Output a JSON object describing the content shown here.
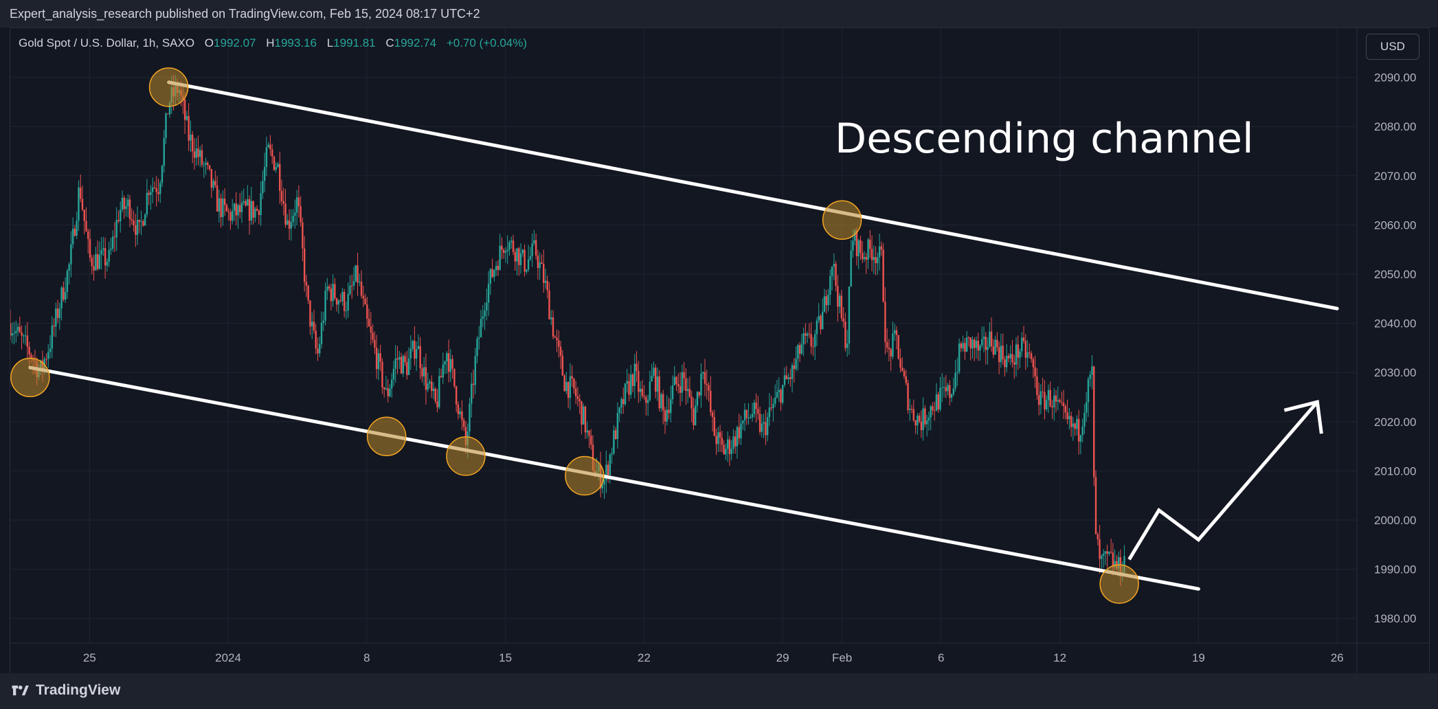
{
  "header": {
    "published": "Expert_analysis_research published on TradingView.com, Feb 15, 2024 08:17 UTC+2"
  },
  "legend": {
    "symbol": "Gold Spot / U.S. Dollar, 1h, SAXO",
    "open_label": "O",
    "open": "1992.07",
    "high_label": "H",
    "high": "1993.16",
    "low_label": "L",
    "low": "1991.81",
    "close_label": "C",
    "close": "1992.74",
    "change": "+0.70 (+0.04%)"
  },
  "currency_button": "USD",
  "annotation": "Descending channel",
  "footer": {
    "brand": "TradingView"
  },
  "colors": {
    "background": "#131722",
    "up": "#26a69a",
    "down": "#ef5350",
    "channel": "#ffffff",
    "marker_fill": "#b8862a",
    "marker_stroke": "#f5a623"
  },
  "chart_data": {
    "type": "candlestick",
    "symbol": "Gold Spot / U.S. Dollar",
    "interval": "1h",
    "y_range": [
      1975,
      2100
    ],
    "y_ticks": [
      2090,
      2080,
      2070,
      2060,
      2050,
      2040,
      2030,
      2020,
      2010,
      2000,
      1990,
      1980
    ],
    "y_tick_labels": [
      "2090.00",
      "2080.00",
      "2070.00",
      "2060.00",
      "2050.00",
      "2040.00",
      "2030.00",
      "2020.00",
      "2010.00",
      "2000.00",
      "1990.00",
      "1980.00"
    ],
    "x_range": [
      "2023-12-21",
      "2024-02-27"
    ],
    "x_ticks": [
      {
        "date": "2023-12-25",
        "label": "25"
      },
      {
        "date": "2024-01-01",
        "label": "2024"
      },
      {
        "date": "2024-01-08",
        "label": "8"
      },
      {
        "date": "2024-01-15",
        "label": "15"
      },
      {
        "date": "2024-01-22",
        "label": "22"
      },
      {
        "date": "2024-01-29",
        "label": "29"
      },
      {
        "date": "2024-02-01",
        "label": "Feb"
      },
      {
        "date": "2024-02-06",
        "label": "6"
      },
      {
        "date": "2024-02-12",
        "label": "12"
      },
      {
        "date": "2024-02-19",
        "label": "19"
      },
      {
        "date": "2024-02-26",
        "label": "26"
      }
    ],
    "price_path": [
      {
        "date": "2023-12-21",
        "price": 2040
      },
      {
        "date": "2023-12-22",
        "price": 2034
      },
      {
        "date": "2023-12-22T12:00",
        "price": 2030
      },
      {
        "date": "2023-12-23",
        "price": 2036
      },
      {
        "date": "2023-12-24",
        "price": 2052
      },
      {
        "date": "2023-12-24T12:00",
        "price": 2068
      },
      {
        "date": "2023-12-25",
        "price": 2053
      },
      {
        "date": "2023-12-26",
        "price": 2053
      },
      {
        "date": "2023-12-26T12:00",
        "price": 2063
      },
      {
        "date": "2023-12-27",
        "price": 2064
      },
      {
        "date": "2023-12-27T12:00",
        "price": 2058
      },
      {
        "date": "2023-12-28",
        "price": 2068
      },
      {
        "date": "2023-12-28T12:00",
        "price": 2068
      },
      {
        "date": "2023-12-29",
        "price": 2085
      },
      {
        "date": "2023-12-29T12:00",
        "price": 2088
      },
      {
        "date": "2023-12-30",
        "price": 2078
      },
      {
        "date": "2023-12-31",
        "price": 2070
      },
      {
        "date": "2023-12-31T12:00",
        "price": 2064
      },
      {
        "date": "2024-01-01",
        "price": 2062
      },
      {
        "date": "2024-01-02",
        "price": 2063
      },
      {
        "date": "2024-01-02T12:00",
        "price": 2063
      },
      {
        "date": "2024-01-03",
        "price": 2075
      },
      {
        "date": "2024-01-03T12:00",
        "price": 2072
      },
      {
        "date": "2024-01-04",
        "price": 2060
      },
      {
        "date": "2024-01-04T12:00",
        "price": 2065
      },
      {
        "date": "2024-01-05",
        "price": 2044
      },
      {
        "date": "2024-01-05T12:00",
        "price": 2033
      },
      {
        "date": "2024-01-06",
        "price": 2047
      },
      {
        "date": "2024-01-07",
        "price": 2044
      },
      {
        "date": "2024-01-07T12:00",
        "price": 2050
      },
      {
        "date": "2024-01-08",
        "price": 2040
      },
      {
        "date": "2024-01-08T12:00",
        "price": 2033
      },
      {
        "date": "2024-01-09",
        "price": 2025
      },
      {
        "date": "2024-01-09T12:00",
        "price": 2033
      },
      {
        "date": "2024-01-10",
        "price": 2031
      },
      {
        "date": "2024-01-10T12:00",
        "price": 2036
      },
      {
        "date": "2024-01-11",
        "price": 2028
      },
      {
        "date": "2024-01-11T12:00",
        "price": 2023
      },
      {
        "date": "2024-01-12",
        "price": 2035
      },
      {
        "date": "2024-01-12T12:00",
        "price": 2026
      },
      {
        "date": "2024-01-13",
        "price": 2015
      },
      {
        "date": "2024-01-13T12:00",
        "price": 2033
      },
      {
        "date": "2024-01-14",
        "price": 2046
      },
      {
        "date": "2024-01-14T12:00",
        "price": 2052
      },
      {
        "date": "2024-01-15",
        "price": 2057
      },
      {
        "date": "2024-01-15T12:00",
        "price": 2055
      },
      {
        "date": "2024-01-16",
        "price": 2052
      },
      {
        "date": "2024-01-16T12:00",
        "price": 2055
      },
      {
        "date": "2024-01-17",
        "price": 2048
      },
      {
        "date": "2024-01-17T12:00",
        "price": 2037
      },
      {
        "date": "2024-01-18",
        "price": 2028
      },
      {
        "date": "2024-01-18T12:00",
        "price": 2026
      },
      {
        "date": "2024-01-19",
        "price": 2020
      },
      {
        "date": "2024-01-19T12:00",
        "price": 2010
      },
      {
        "date": "2024-01-20",
        "price": 2008
      },
      {
        "date": "2024-01-20T12:00",
        "price": 2017
      },
      {
        "date": "2024-01-21",
        "price": 2025
      },
      {
        "date": "2024-01-21T12:00",
        "price": 2030
      },
      {
        "date": "2024-01-22",
        "price": 2023
      },
      {
        "date": "2024-01-22T12:00",
        "price": 2030
      },
      {
        "date": "2024-01-23",
        "price": 2021
      },
      {
        "date": "2024-01-23T12:00",
        "price": 2027
      },
      {
        "date": "2024-01-24",
        "price": 2029
      },
      {
        "date": "2024-01-24T12:00",
        "price": 2021
      },
      {
        "date": "2024-01-25",
        "price": 2032
      },
      {
        "date": "2024-01-25T12:00",
        "price": 2018
      },
      {
        "date": "2024-01-26",
        "price": 2014
      },
      {
        "date": "2024-01-26T12:00",
        "price": 2016
      },
      {
        "date": "2024-01-27",
        "price": 2020
      },
      {
        "date": "2024-01-27T12:00",
        "price": 2022
      },
      {
        "date": "2024-01-28",
        "price": 2018
      },
      {
        "date": "2024-01-28T12:00",
        "price": 2023
      },
      {
        "date": "2024-01-29",
        "price": 2027
      },
      {
        "date": "2024-01-29T12:00",
        "price": 2030
      },
      {
        "date": "2024-01-30",
        "price": 2036
      },
      {
        "date": "2024-01-30T12:00",
        "price": 2036
      },
      {
        "date": "2024-01-31",
        "price": 2041
      },
      {
        "date": "2024-01-31T12:00",
        "price": 2053
      },
      {
        "date": "2024-02-01",
        "price": 2040
      },
      {
        "date": "2024-02-01T06:00",
        "price": 2036
      },
      {
        "date": "2024-02-01T12:00",
        "price": 2058
      },
      {
        "date": "2024-02-02",
        "price": 2054
      },
      {
        "date": "2024-02-02T12:00",
        "price": 2055
      },
      {
        "date": "2024-02-03",
        "price": 2053
      },
      {
        "date": "2024-02-03T06:00",
        "price": 2033
      },
      {
        "date": "2024-02-03T18:00",
        "price": 2037
      },
      {
        "date": "2024-02-04",
        "price": 2030
      },
      {
        "date": "2024-02-04T12:00",
        "price": 2022
      },
      {
        "date": "2024-02-05",
        "price": 2020
      },
      {
        "date": "2024-02-05T12:00",
        "price": 2023
      },
      {
        "date": "2024-02-06",
        "price": 2025
      },
      {
        "date": "2024-02-06T12:00",
        "price": 2026
      },
      {
        "date": "2024-02-07",
        "price": 2035
      },
      {
        "date": "2024-02-07T12:00",
        "price": 2036
      },
      {
        "date": "2024-02-08",
        "price": 2034
      },
      {
        "date": "2024-02-08T12:00",
        "price": 2037
      },
      {
        "date": "2024-02-09",
        "price": 2034
      },
      {
        "date": "2024-02-09T12:00",
        "price": 2032
      },
      {
        "date": "2024-02-10",
        "price": 2035
      },
      {
        "date": "2024-02-10T12:00",
        "price": 2033
      },
      {
        "date": "2024-02-11",
        "price": 2024
      },
      {
        "date": "2024-02-11T12:00",
        "price": 2025
      },
      {
        "date": "2024-02-12",
        "price": 2022
      },
      {
        "date": "2024-02-12T12:00",
        "price": 2019
      },
      {
        "date": "2024-02-13",
        "price": 2018
      },
      {
        "date": "2024-02-13T06:00",
        "price": 2024
      },
      {
        "date": "2024-02-13T12:00",
        "price": 2028
      },
      {
        "date": "2024-02-13T15:00",
        "price": 2030
      },
      {
        "date": "2024-02-13T18:00",
        "price": 2000
      },
      {
        "date": "2024-02-14",
        "price": 1991
      },
      {
        "date": "2024-02-14T12:00",
        "price": 1992
      },
      {
        "date": "2024-02-15",
        "price": 1990
      },
      {
        "date": "2024-02-15T08:00",
        "price": 1992.74
      }
    ],
    "channel": {
      "upper": [
        {
          "date": "2023-12-29",
          "price": 2089
        },
        {
          "date": "2024-02-26",
          "price": 2043
        }
      ],
      "lower": [
        {
          "date": "2023-12-22",
          "price": 2031
        },
        {
          "date": "2024-02-19",
          "price": 1986
        }
      ]
    },
    "touch_points": [
      {
        "date": "2023-12-22",
        "price": 2029
      },
      {
        "date": "2023-12-29",
        "price": 2088
      },
      {
        "date": "2024-01-09",
        "price": 2017
      },
      {
        "date": "2024-01-13",
        "price": 2013
      },
      {
        "date": "2024-01-19",
        "price": 2009
      },
      {
        "date": "2024-02-01",
        "price": 2061
      },
      {
        "date": "2024-02-15",
        "price": 1987
      }
    ],
    "projection": [
      {
        "date": "2024-02-15T12:00",
        "price": 1992
      },
      {
        "date": "2024-02-17",
        "price": 2002
      },
      {
        "date": "2024-02-19",
        "price": 1996
      },
      {
        "date": "2024-02-25",
        "price": 2024
      }
    ]
  }
}
